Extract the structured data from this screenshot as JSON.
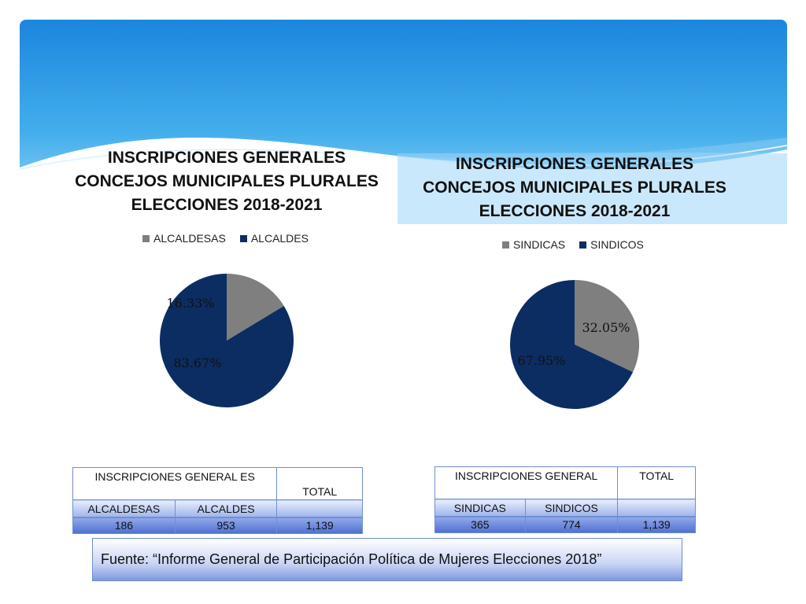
{
  "colors": {
    "header_top": "#1b86dd",
    "header_bottom": "#9fd6f7",
    "slice_grey": "#7f7f7f",
    "slice_navy": "#0c2d62",
    "table_border": "#6f8fd0"
  },
  "charts": {
    "left": {
      "title_lines": [
        "INSCRIPCIONES GENERALES",
        "CONCEJOS MUNICIPALES PLURALES",
        "ELECCIONES 2018-2021"
      ],
      "legend": [
        "ALCALDESAS",
        "ALCALDES"
      ]
    },
    "right": {
      "title_lines": [
        "INSCRIPCIONES GENERALES",
        "CONCEJOS MUNICIPALES PLURALES",
        "ELECCIONES 2018-2021"
      ],
      "legend": [
        "SINDICAS",
        "SINDICOS"
      ]
    }
  },
  "chart_data": [
    {
      "type": "pie",
      "title": "INSCRIPCIONES GENERALES CONCEJOS MUNICIPALES PLURALES ELECCIONES 2018-2021",
      "categories": [
        "ALCALDESAS",
        "ALCALDES"
      ],
      "values": [
        16.33,
        83.67
      ],
      "labels": [
        "16.33%",
        "83.67%"
      ],
      "colors": [
        "#7f7f7f",
        "#0c2d62"
      ],
      "legend_position": "top"
    },
    {
      "type": "pie",
      "title": "INSCRIPCIONES GENERALES CONCEJOS MUNICIPALES PLURALES ELECCIONES 2018-2021",
      "categories": [
        "SINDICAS",
        "SINDICOS"
      ],
      "values": [
        32.05,
        67.95
      ],
      "labels": [
        "32.05%",
        "67.95%"
      ],
      "colors": [
        "#7f7f7f",
        "#0c2d62"
      ],
      "legend_position": "top"
    }
  ],
  "tables": {
    "left": {
      "header_group": "INSCRIPCIONES GENERAL ES",
      "header_total": "TOTAL",
      "col1": "ALCALDESAS",
      "col2": "ALCALDES",
      "values": [
        "186",
        "953",
        "1,139"
      ]
    },
    "right": {
      "header_group": "INSCRIPCIONES GENERAL",
      "header_total": "TOTAL",
      "col1": "SINDICAS",
      "col2": "SINDICOS",
      "values": [
        "365",
        "774",
        "1,139"
      ]
    }
  },
  "source": "Fuente: “Informe General de Participación Política de Mujeres Elecciones  2018”"
}
